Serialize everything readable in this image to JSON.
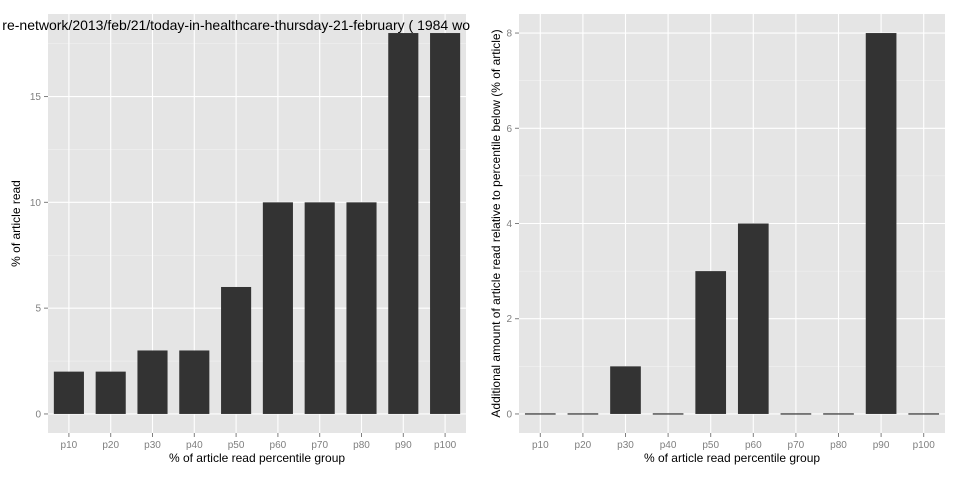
{
  "chart_data": [
    {
      "type": "bar",
      "title": "re-network/2013/feb/21/today-in-healthcare-thursday-21-february ( 1984 wo",
      "xlabel": "% of article read percentile group",
      "ylabel": "% of article read",
      "categories": [
        "p10",
        "p20",
        "p30",
        "p40",
        "p50",
        "p60",
        "p70",
        "p80",
        "p90",
        "p100"
      ],
      "values": [
        2,
        2,
        3,
        3,
        6,
        10,
        10,
        10,
        18,
        18
      ],
      "yticks": [
        0,
        5,
        10,
        15
      ],
      "ylim": [
        -0.9,
        18.9
      ],
      "grid": true,
      "bar_color": "#333333",
      "panel_color": "#e5e5e5"
    },
    {
      "type": "bar",
      "title": "",
      "xlabel": "% of article read percentile group",
      "ylabel": "Additional amount of article read relative to percentile below (% of article)",
      "categories": [
        "p10",
        "p20",
        "p30",
        "p40",
        "p50",
        "p60",
        "p70",
        "p80",
        "p90",
        "p100"
      ],
      "values": [
        0,
        0,
        1,
        0,
        3,
        4,
        0,
        0,
        8,
        0
      ],
      "yticks": [
        0,
        2,
        4,
        6,
        8
      ],
      "ylim": [
        -0.4,
        8.4
      ],
      "grid": true,
      "bar_color": "#333333",
      "panel_color": "#e5e5e5"
    }
  ]
}
